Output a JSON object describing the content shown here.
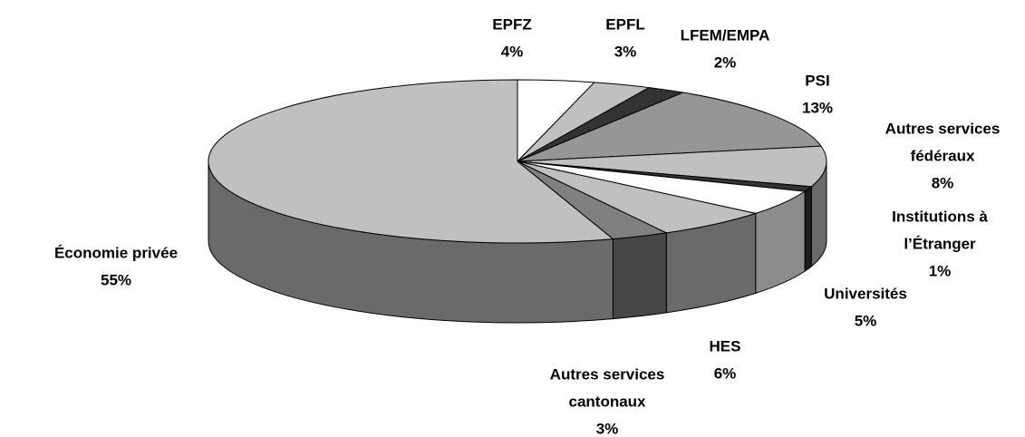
{
  "chart_data": {
    "type": "pie3d",
    "categories": [
      [
        "EPFZ"
      ],
      [
        "EPFL"
      ],
      [
        "LFEM/EMPA"
      ],
      [
        "PSI"
      ],
      [
        "Autres services",
        "fédéraux"
      ],
      [
        "Institutions à",
        "l’Étranger"
      ],
      [
        "Universités"
      ],
      [
        "HES"
      ],
      [
        "Autres services",
        "cantonaux"
      ],
      [
        "Économie privée"
      ]
    ],
    "values": [
      4,
      3,
      2,
      13,
      8,
      1,
      5,
      6,
      3,
      55
    ],
    "value_labels": [
      "4%",
      "3%",
      "2%",
      "13%",
      "8%",
      "1%",
      "5%",
      "6%",
      "3%",
      "55%"
    ],
    "colors": [
      "#ffffff",
      "#c0c0c0",
      "#333333",
      "#969696",
      "#c0c0c0",
      "#333333",
      "#ffffff",
      "#c0c0c0",
      "#808080",
      "#c0c0c0"
    ]
  }
}
